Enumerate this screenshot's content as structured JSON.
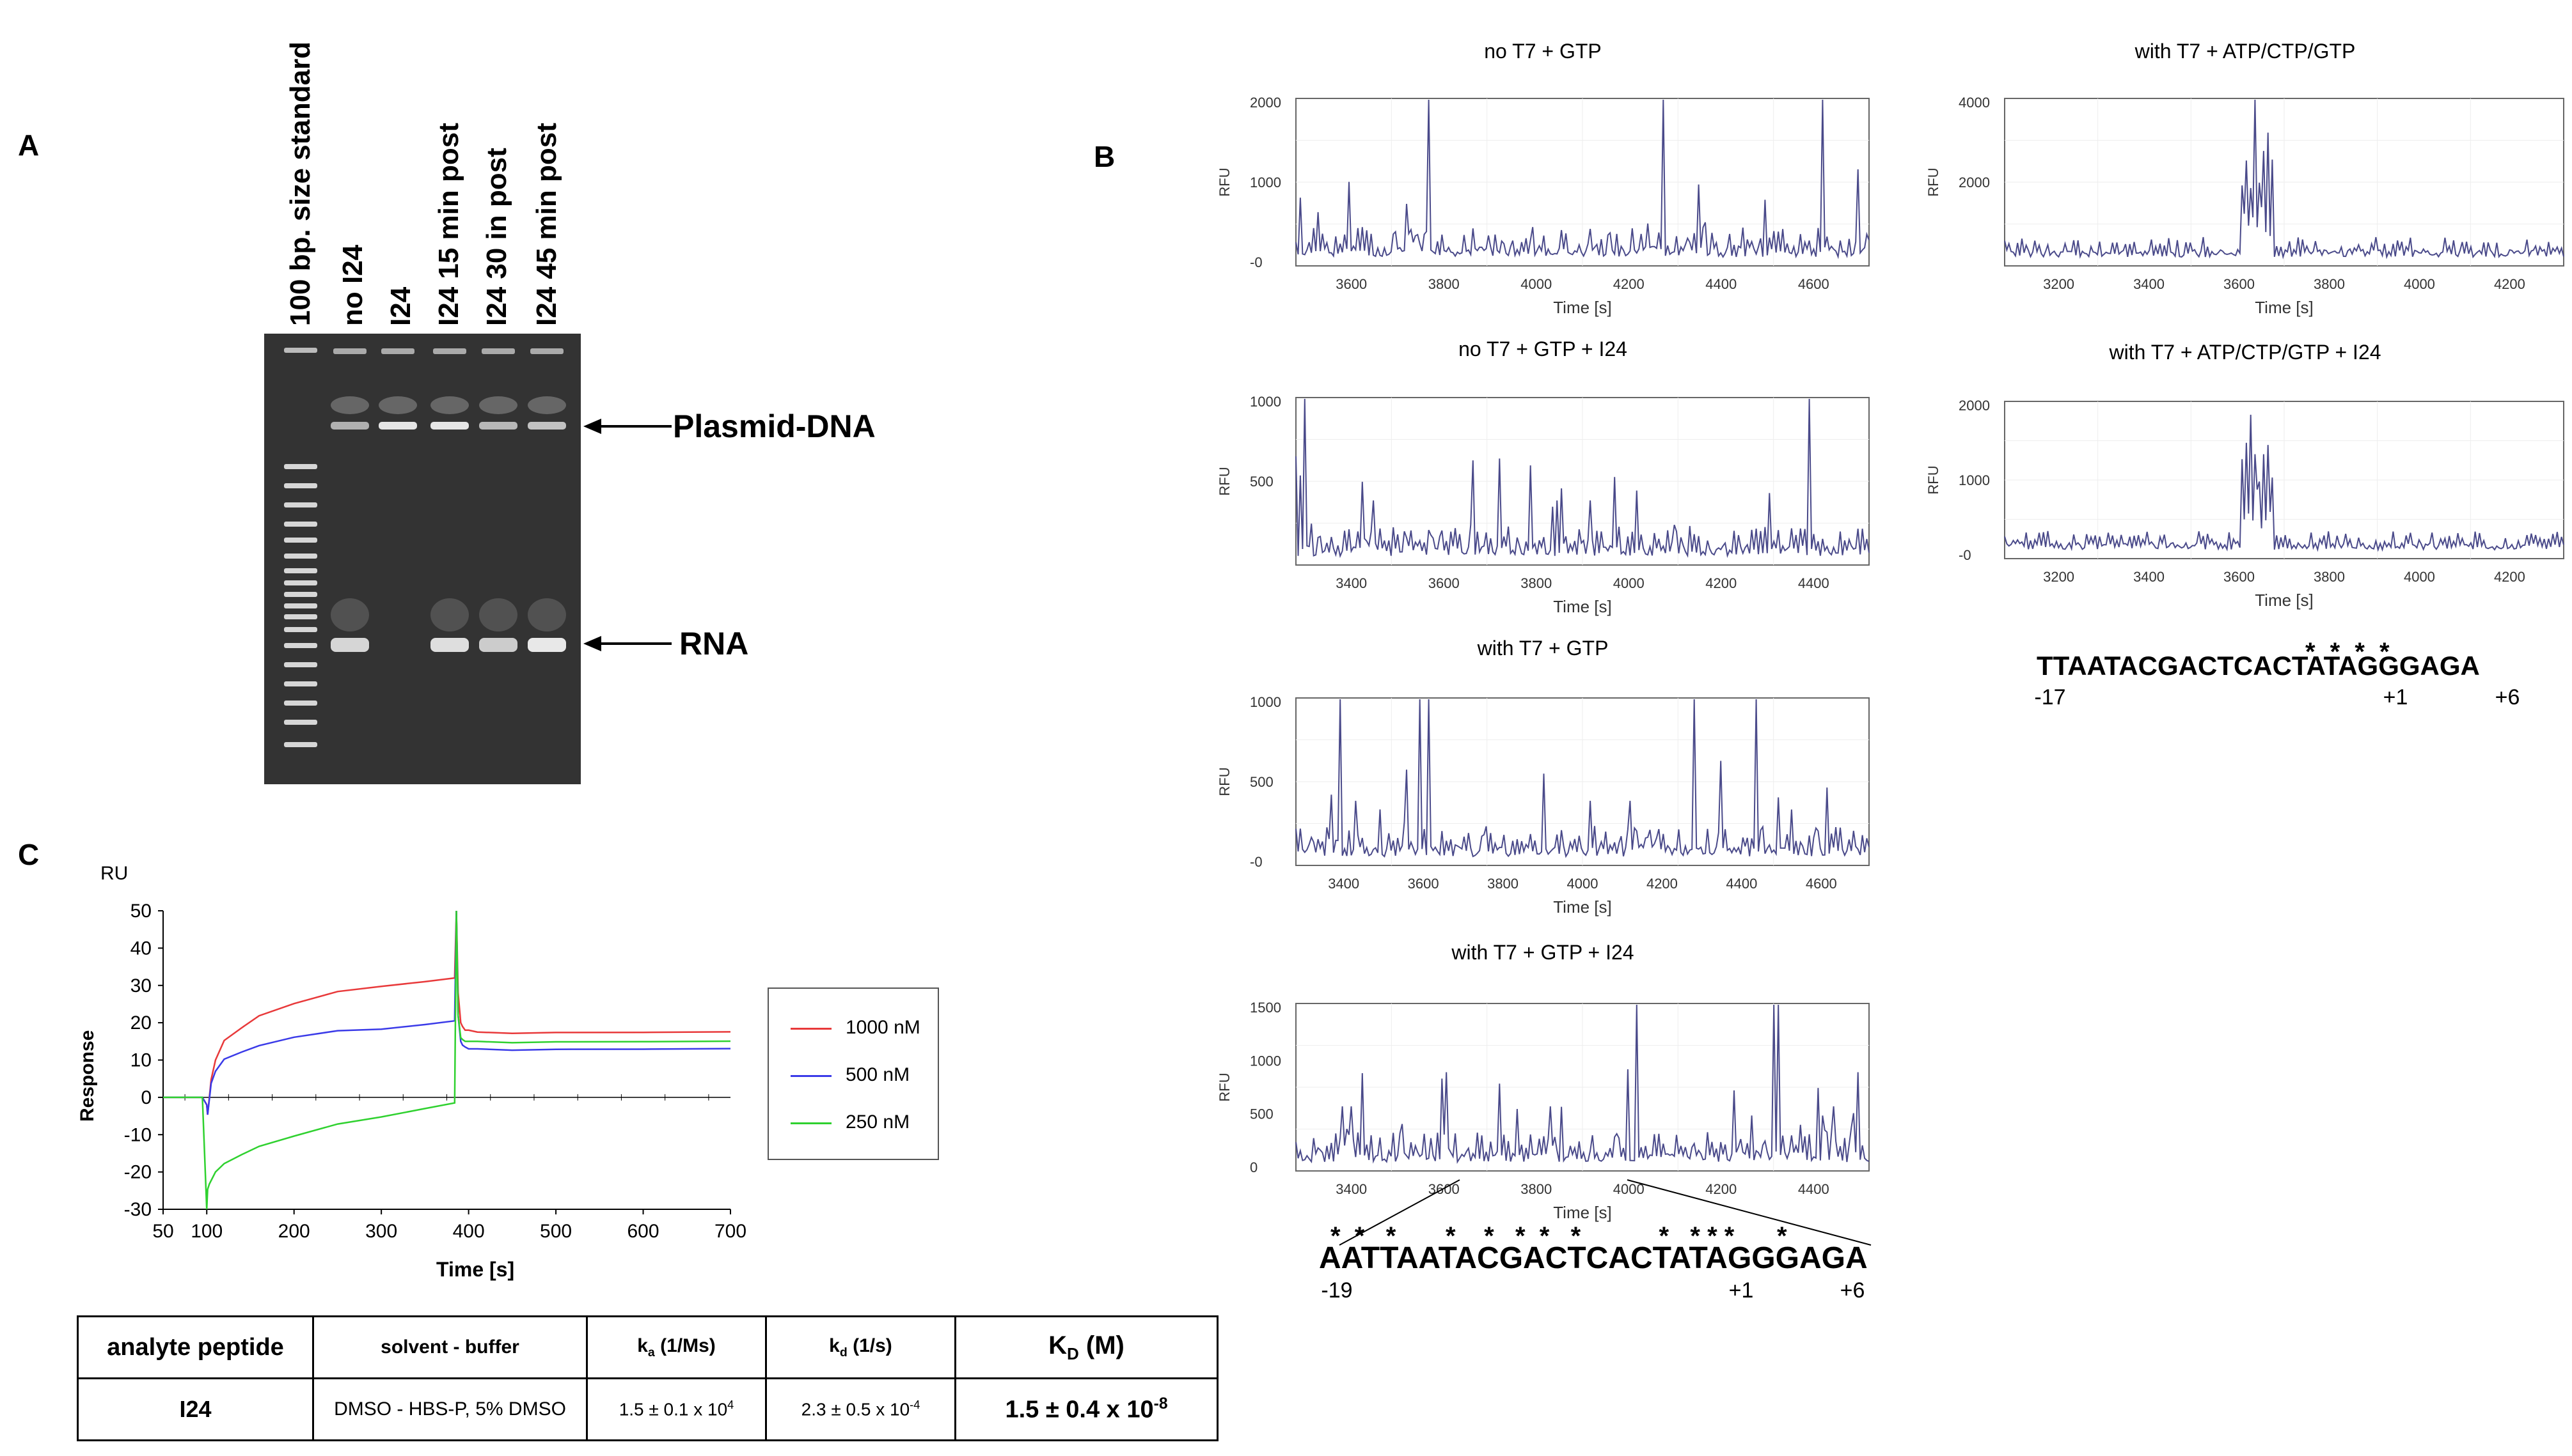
{
  "panels": {
    "a": "A",
    "b": "B",
    "c": "C"
  },
  "gel": {
    "lanes": [
      "100 bp. size standard",
      "no I24",
      "I24",
      "I24 15 min post",
      "I24 30  in post",
      "I24 45 min post"
    ],
    "annotations": {
      "plasmid": "Plasmid-DNA",
      "rna": "RNA"
    }
  },
  "electropherograms": [
    {
      "title": "no T7 + GTP",
      "ylabel": "RFU",
      "xlabel": "Time [s]",
      "y_ticks": [
        "2000",
        "1000",
        "-0"
      ],
      "x_ticks": [
        "3600",
        "3800",
        "4000",
        "4200",
        "4400",
        "4600"
      ]
    },
    {
      "title": "with T7 + ATP/CTP/GTP",
      "ylabel": "RFU",
      "xlabel": "Time [s]",
      "y_ticks": [
        "4000",
        "2000"
      ],
      "x_ticks": [
        "3200",
        "3400",
        "3600",
        "3800",
        "4000",
        "4200"
      ]
    },
    {
      "title": "no T7 + GTP + I24",
      "ylabel": "RFU",
      "xlabel": "Time [s]",
      "y_ticks": [
        "1000",
        "500"
      ],
      "x_ticks": [
        "3400",
        "3600",
        "3800",
        "4000",
        "4200",
        "4400"
      ]
    },
    {
      "title": "with T7 + ATP/CTP/GTP + I24",
      "ylabel": "RFU",
      "xlabel": "Time [s]",
      "y_ticks": [
        "2000",
        "1000",
        "-0"
      ],
      "x_ticks": [
        "3200",
        "3400",
        "3600",
        "3800",
        "4000",
        "4200"
      ]
    },
    {
      "title": "with T7 + GTP",
      "ylabel": "RFU",
      "xlabel": "Time [s]",
      "y_ticks": [
        "1000",
        "500",
        "-0"
      ],
      "x_ticks": [
        "3400",
        "3600",
        "3800",
        "4000",
        "4200",
        "4400",
        "4600"
      ]
    },
    {
      "title": "with T7 + GTP + I24",
      "ylabel": "RFU",
      "xlabel": "Time [s]",
      "y_ticks": [
        "1500",
        "1000",
        "500",
        "0"
      ],
      "x_ticks": [
        "3400",
        "3600",
        "3800",
        "4000",
        "4200",
        "4400"
      ]
    }
  ],
  "sequences": {
    "top": {
      "seq": "TTAATACGACTCACTATAGGGAGA",
      "stars": "* * * *",
      "left": "-17",
      "plus1": "+1",
      "plus6": "+6"
    },
    "bottom": {
      "seq": "AATTAATACGACTCACTATAGGGAGA",
      "stars": "*  *   *       *    *   *  *   *           *   * * *      *",
      "left": "-19",
      "plus1": "+1",
      "plus6": "+6"
    }
  },
  "chart_data": {
    "type": "line",
    "title": "",
    "xlabel": "Time [s]",
    "ylabel": "Response",
    "unit_label": "RU",
    "xlim": [
      50,
      700
    ],
    "ylim": [
      -30,
      50
    ],
    "x_ticks": [
      50,
      100,
      200,
      300,
      400,
      500,
      600,
      700
    ],
    "y_ticks": [
      50,
      40,
      30,
      20,
      10,
      0,
      -10,
      -20,
      -30
    ],
    "grid": false,
    "legend": "right",
    "series": [
      {
        "name": "1000 nM",
        "color": "#e8393a",
        "x": [
          50,
          95,
          100,
          101,
          105,
          110,
          120,
          140,
          160,
          200,
          250,
          300,
          350,
          384,
          386,
          388,
          391,
          393,
          396,
          400,
          410,
          450,
          500,
          600,
          700
        ],
        "y": [
          0,
          0,
          -2,
          -5,
          5,
          10,
          15,
          19,
          22,
          25,
          28,
          30,
          31,
          32,
          50,
          28,
          20,
          19,
          18,
          18,
          17.5,
          17.5,
          17.5,
          17.3,
          17.2
        ]
      },
      {
        "name": "500 nM",
        "color": "#3a3ae8",
        "x": [
          50,
          95,
          100,
          101,
          105,
          110,
          120,
          140,
          160,
          200,
          250,
          300,
          350,
          384,
          386,
          388,
          391,
          393,
          396,
          400,
          410,
          450,
          500,
          600,
          700
        ],
        "y": [
          0,
          0,
          -2,
          -5,
          4,
          7,
          10,
          12.5,
          14,
          16,
          17.5,
          18.5,
          19.5,
          20.5,
          50,
          22,
          15,
          14,
          13.5,
          13,
          13,
          13,
          13,
          12.8,
          12.7
        ]
      },
      {
        "name": "250 nM",
        "color": "#2fd12f",
        "x": [
          50,
          95,
          100,
          101,
          103,
          110,
          120,
          140,
          160,
          200,
          250,
          300,
          350,
          384,
          386,
          388,
          391,
          393,
          396,
          400,
          410,
          450,
          500,
          600,
          700
        ],
        "y": [
          0,
          0,
          -30,
          -25,
          -23,
          -20,
          -18,
          -15,
          -13,
          -10.5,
          -7.5,
          -5,
          -3,
          -1.5,
          50,
          22,
          16,
          15.5,
          15,
          15,
          15,
          15,
          15,
          14.8,
          14.7
        ]
      }
    ]
  },
  "table": {
    "headers": {
      "analyte": "analyte peptide",
      "solvent": "solvent - buffer",
      "ka_k": "k",
      "ka_sub": "a",
      "ka_unit": " (1/Ms)",
      "kd_k": "k",
      "kd_sub": "d",
      "kd_unit": " (1/s)",
      "KD_K": "K",
      "KD_sub": "D",
      "KD_unit": " (M)"
    },
    "row": {
      "analyte": "I24",
      "solvent": "DMSO - HBS-P, 5% DMSO",
      "ka_val": "1.5 ± 0.1 x 10",
      "ka_exp": "4",
      "kd_val": "2.3 ± 0.5 x 10",
      "kd_exp": "-4",
      "KD_val": "1.5 ± 0.4 x 10",
      "KD_exp": "-8"
    }
  }
}
